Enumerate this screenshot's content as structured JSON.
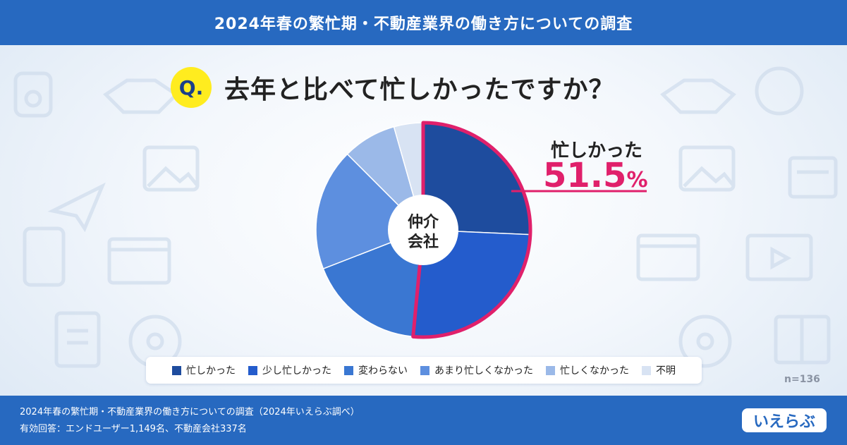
{
  "header": {
    "title": "2024年春の繁忙期・不動産業界の働き方についての調査"
  },
  "question": {
    "badge": "Q.",
    "text": "去年と比べて忙しかったですか？"
  },
  "chart_data": {
    "type": "pie",
    "center_label_line1": "仲介",
    "center_label_line2": "会社",
    "categories": [
      "忙しかった",
      "少し忙しかった",
      "変わらない",
      "あまり忙しくなかった",
      "忙しくなかった",
      "不明"
    ],
    "values": [
      25.7,
      25.8,
      17.6,
      18.4,
      8.1,
      4.4
    ],
    "colors": [
      "#1e4c9e",
      "#245ccc",
      "#3a77d2",
      "#5d8fdf",
      "#9bb9e8",
      "#d8e3f3"
    ],
    "highlight": {
      "label": "忙しかった",
      "value_text": "51.5",
      "unit": "%",
      "categories_included": [
        "忙しかった",
        "少し忙しかった"
      ],
      "border_color": "#e0206b"
    },
    "n_label": "n=136"
  },
  "footer": {
    "line1": "2024年春の繁忙期・不動産業界の働き方についての調査（2024年いえらぶ調べ）",
    "line2": "有効回答：エンドユーザー1,149名、不動産会社337名",
    "logo_text": "いえらぶ"
  }
}
